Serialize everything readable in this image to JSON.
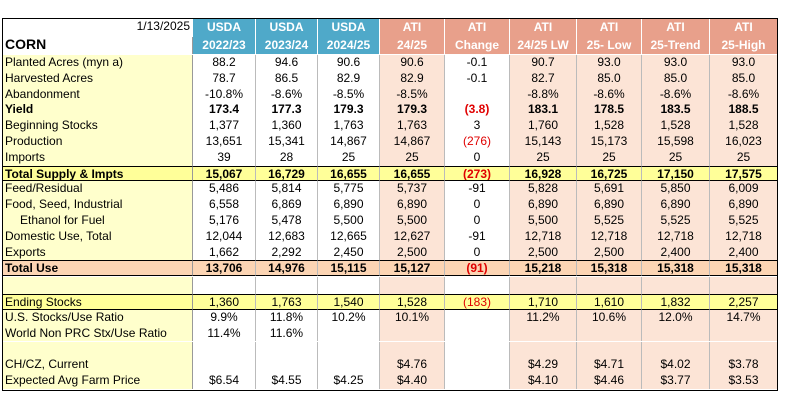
{
  "header": {
    "date": "1/13/2025",
    "commodity": "CORN",
    "groups": [
      "USDA",
      "USDA",
      "USDA",
      "ATI",
      "ATI",
      "ATI",
      "ATI",
      "ATI",
      "ATI"
    ],
    "columns": [
      "2022/23",
      "2023/24",
      "2024/25",
      "24/25",
      "Change",
      "24/25 LW",
      "25- Low",
      "25-Trend",
      "25-High"
    ]
  },
  "table": {
    "rows": [
      {
        "label": "Planted Acres (myn a)",
        "cells": [
          "88.2",
          "94.6",
          "90.6",
          "90.6",
          "-0.1",
          "90.7",
          "93.0",
          "93.0",
          "93.0"
        ]
      },
      {
        "label": "Harvested Acres",
        "cells": [
          "78.7",
          "86.5",
          "82.9",
          "82.9",
          "-0.1",
          "82.7",
          "85.0",
          "85.0",
          "85.0"
        ]
      },
      {
        "label": "Abandonment",
        "cells": [
          "-10.8%",
          "-8.6%",
          "-8.5%",
          "-8.5%",
          null,
          "-8.8%",
          "-8.6%",
          "-8.6%",
          "-8.6%"
        ]
      },
      {
        "label": "Yield",
        "cells": [
          "173.4",
          "177.3",
          "179.3",
          "179.3",
          "(3.8)",
          "183.1",
          "178.5",
          "183.5",
          "188.5"
        ]
      },
      {
        "label": "Beginning Stocks",
        "cells": [
          "1,377",
          "1,360",
          "1,763",
          "1,763",
          "3",
          "1,760",
          "1,528",
          "1,528",
          "1,528"
        ]
      },
      {
        "label": "Production",
        "cells": [
          "13,651",
          "15,341",
          "14,867",
          "14,867",
          "(276)",
          "15,143",
          "15,173",
          "15,598",
          "16,023"
        ]
      },
      {
        "label": "Imports",
        "cells": [
          "39",
          "28",
          "25",
          "25",
          "0",
          "25",
          "25",
          "25",
          "25"
        ]
      },
      {
        "label": "Total Supply & Impts",
        "cells": [
          "15,067",
          "16,729",
          "16,655",
          "16,655",
          "(273)",
          "16,928",
          "16,725",
          "17,150",
          "17,575"
        ]
      },
      {
        "label": "Feed/Residual",
        "cells": [
          "5,486",
          "5,814",
          "5,775",
          "5,737",
          "-91",
          "5,828",
          "5,691",
          "5,850",
          "6,009"
        ]
      },
      {
        "label": "Food, Seed, Industrial",
        "cells": [
          "6,558",
          "6,869",
          "6,890",
          "6,890",
          "0",
          "6,890",
          "6,890",
          "6,890",
          "6,890"
        ]
      },
      {
        "label": "Ethanol for Fuel",
        "cells": [
          "5,176",
          "5,478",
          "5,500",
          "5,500",
          "0",
          "5,500",
          "5,525",
          "5,525",
          "5,525"
        ]
      },
      {
        "label": "Domestic Use, Total",
        "cells": [
          "12,044",
          "12,683",
          "12,665",
          "12,627",
          "-91",
          "12,718",
          "12,718",
          "12,718",
          "12,718"
        ]
      },
      {
        "label": "Exports",
        "cells": [
          "1,662",
          "2,292",
          "2,450",
          "2,500",
          "0",
          "2,500",
          "2,500",
          "2,400",
          "2,400"
        ]
      },
      {
        "label": "Total Use",
        "cells": [
          "13,706",
          "14,976",
          "15,115",
          "15,127",
          "(91)",
          "15,218",
          "15,318",
          "15,318",
          "15,318"
        ]
      },
      {
        "label": "Ending Stocks",
        "cells": [
          "1,360",
          "1,763",
          "1,540",
          "1,528",
          "(183)",
          "1,710",
          "1,610",
          "1,832",
          "2,257"
        ]
      },
      {
        "label": "U.S. Stocks/Use Ratio",
        "cells": [
          "9.9%",
          "11.8%",
          "10.2%",
          "10.1%",
          null,
          "11.2%",
          "10.6%",
          "12.0%",
          "14.7%"
        ]
      },
      {
        "label": "World Non PRC Stx/Use Ratio",
        "cells": [
          "11.4%",
          "11.6%",
          null,
          null,
          null,
          null,
          null,
          null,
          null
        ]
      },
      {
        "label": "CH/CZ, Current",
        "cells": [
          null,
          null,
          null,
          "$4.76",
          null,
          "$4.29",
          "$4.71",
          "$4.02",
          "$3.78"
        ]
      },
      {
        "label": "Expected Avg Farm Price",
        "cells": [
          "$6.54",
          "$4.55",
          "$4.25",
          "$4.40",
          null,
          "$4.10",
          "$4.46",
          "$3.77",
          "$3.53"
        ]
      }
    ]
  }
}
